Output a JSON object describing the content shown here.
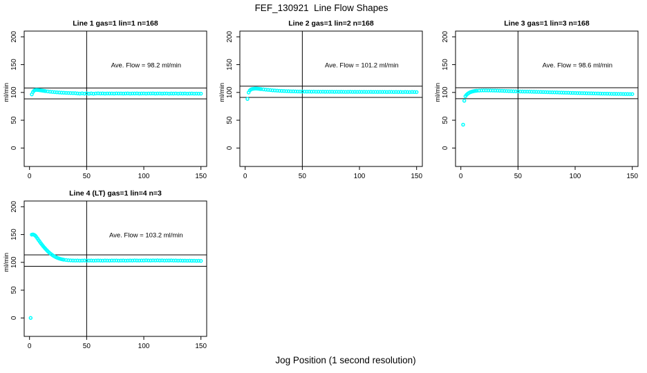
{
  "figure": {
    "title": "FEF_130921  Line Flow Shapes",
    "xlabel": "Jog Position (1 second resolution)",
    "point_color": "#00FFFF",
    "axis_color": "#000000",
    "background_color": "#FFFFFF"
  },
  "chart_data": [
    {
      "type": "scatter",
      "title": "Line 1 gas=1 lin=1 n=168",
      "annotation": "Ave. Flow =  98.2  ml/min",
      "ave_flow": 98.2,
      "n": 168,
      "ylabel": "ml/min",
      "xlim": [
        0,
        150
      ],
      "ylim": [
        0,
        200
      ],
      "x_ticks": [
        0,
        50,
        100,
        150
      ],
      "y_ticks": [
        0,
        50,
        100,
        150,
        200
      ],
      "vline_x": 50,
      "hlines": [
        108.0,
        88.4
      ],
      "points": [
        [
          2,
          96.5
        ],
        [
          3,
          100.8
        ],
        [
          4,
          103.2
        ],
        [
          5,
          104.3
        ],
        [
          6,
          104.6
        ],
        [
          7,
          104.5
        ],
        [
          8,
          104.2
        ],
        [
          9,
          103.9
        ],
        [
          10,
          103.6
        ],
        [
          11,
          103.3
        ],
        [
          12,
          103.0
        ],
        [
          13,
          102.7
        ],
        [
          14,
          102.4
        ],
        [
          16,
          101.8
        ],
        [
          18,
          101.3
        ],
        [
          20,
          100.9
        ],
        [
          22,
          100.5
        ],
        [
          24,
          100.2
        ],
        [
          26,
          99.9
        ],
        [
          28,
          99.6
        ],
        [
          30,
          99.4
        ],
        [
          32,
          99.2
        ],
        [
          34,
          99.0
        ],
        [
          36,
          98.9
        ],
        [
          38,
          98.7
        ],
        [
          40,
          98.6
        ],
        [
          42,
          98.2
        ],
        [
          44,
          97.9
        ],
        [
          46,
          98.4
        ],
        [
          48,
          97.8
        ],
        [
          50,
          98.3
        ],
        [
          52,
          97.7
        ],
        [
          54,
          98.2
        ],
        [
          56,
          97.6
        ],
        [
          58,
          98.1
        ],
        [
          60,
          98.3
        ],
        [
          62,
          98.0
        ],
        [
          64,
          98.2
        ],
        [
          66,
          97.9
        ],
        [
          68,
          98.1
        ],
        [
          70,
          98.0
        ],
        [
          72,
          98.1
        ],
        [
          74,
          97.9
        ],
        [
          76,
          98.2
        ],
        [
          78,
          98.0
        ],
        [
          80,
          98.1
        ],
        [
          82,
          97.9
        ],
        [
          84,
          98.0
        ],
        [
          86,
          98.2
        ],
        [
          88,
          97.9
        ],
        [
          90,
          98.1
        ],
        [
          92,
          98.0
        ],
        [
          94,
          98.2
        ],
        [
          96,
          97.9
        ],
        [
          98,
          98.0
        ],
        [
          100,
          98.1
        ],
        [
          102,
          97.9
        ],
        [
          104,
          98.1
        ],
        [
          106,
          98.0
        ],
        [
          108,
          98.2
        ],
        [
          110,
          97.9
        ],
        [
          112,
          98.0
        ],
        [
          114,
          98.1
        ],
        [
          116,
          97.9
        ],
        [
          118,
          98.0
        ],
        [
          120,
          98.1
        ],
        [
          122,
          97.8
        ],
        [
          124,
          98.0
        ],
        [
          126,
          97.9
        ],
        [
          128,
          98.1
        ],
        [
          130,
          97.8
        ],
        [
          132,
          98.0
        ],
        [
          134,
          97.9
        ],
        [
          136,
          98.0
        ],
        [
          138,
          97.8
        ],
        [
          140,
          97.9
        ],
        [
          142,
          98.0
        ],
        [
          144,
          97.8
        ],
        [
          146,
          97.9
        ],
        [
          148,
          97.8
        ],
        [
          150,
          97.8
        ]
      ]
    },
    {
      "type": "scatter",
      "title": "Line 2 gas=1 lin=2 n=168",
      "annotation": "Ave. Flow =  101.2  ml/min",
      "ave_flow": 101.2,
      "n": 168,
      "ylabel": "ml/min",
      "xlim": [
        0,
        150
      ],
      "ylim": [
        0,
        200
      ],
      "x_ticks": [
        0,
        50,
        100,
        150
      ],
      "y_ticks": [
        0,
        50,
        100,
        150,
        200
      ],
      "vline_x": 50,
      "hlines": [
        111.3,
        91.1
      ],
      "points": [
        [
          2,
          88.2
        ],
        [
          3,
          99.8
        ],
        [
          4,
          103.5
        ],
        [
          5,
          105.3
        ],
        [
          6,
          106.2
        ],
        [
          7,
          106.5
        ],
        [
          8,
          106.8
        ],
        [
          9,
          107.0
        ],
        [
          10,
          106.9
        ],
        [
          11,
          106.7
        ],
        [
          12,
          106.5
        ],
        [
          13,
          106.2
        ],
        [
          14,
          106.0
        ],
        [
          16,
          105.5
        ],
        [
          18,
          105.0
        ],
        [
          20,
          104.6
        ],
        [
          22,
          104.2
        ],
        [
          24,
          103.8
        ],
        [
          26,
          103.5
        ],
        [
          28,
          103.2
        ],
        [
          30,
          102.9
        ],
        [
          32,
          102.7
        ],
        [
          34,
          102.5
        ],
        [
          36,
          102.3
        ],
        [
          38,
          102.2
        ],
        [
          40,
          102.0
        ],
        [
          42,
          101.9
        ],
        [
          44,
          101.8
        ],
        [
          46,
          101.7
        ],
        [
          48,
          101.6
        ],
        [
          50,
          101.6
        ],
        [
          52,
          101.5
        ],
        [
          54,
          101.4
        ],
        [
          56,
          101.5
        ],
        [
          58,
          101.3
        ],
        [
          60,
          101.4
        ],
        [
          62,
          101.2
        ],
        [
          64,
          101.3
        ],
        [
          66,
          101.2
        ],
        [
          68,
          101.3
        ],
        [
          70,
          101.1
        ],
        [
          72,
          101.2
        ],
        [
          74,
          101.1
        ],
        [
          76,
          101.2
        ],
        [
          78,
          101.0
        ],
        [
          80,
          101.1
        ],
        [
          82,
          101.0
        ],
        [
          84,
          101.1
        ],
        [
          86,
          101.0
        ],
        [
          88,
          100.9
        ],
        [
          90,
          101.0
        ],
        [
          92,
          101.1
        ],
        [
          94,
          100.9
        ],
        [
          96,
          101.0
        ],
        [
          98,
          100.9
        ],
        [
          100,
          101.0
        ],
        [
          102,
          100.9
        ],
        [
          104,
          101.0
        ],
        [
          106,
          100.8
        ],
        [
          108,
          100.9
        ],
        [
          110,
          101.0
        ],
        [
          112,
          100.8
        ],
        [
          114,
          100.9
        ],
        [
          116,
          100.8
        ],
        [
          118,
          100.9
        ],
        [
          120,
          100.8
        ],
        [
          122,
          100.9
        ],
        [
          124,
          100.7
        ],
        [
          126,
          100.8
        ],
        [
          128,
          100.9
        ],
        [
          130,
          100.7
        ],
        [
          132,
          100.8
        ],
        [
          134,
          100.7
        ],
        [
          136,
          100.8
        ],
        [
          138,
          100.6
        ],
        [
          140,
          100.8
        ],
        [
          142,
          100.7
        ],
        [
          144,
          100.6
        ],
        [
          146,
          100.8
        ],
        [
          148,
          100.7
        ],
        [
          150,
          100.6
        ]
      ]
    },
    {
      "type": "scatter",
      "title": "Line 3 gas=1 lin=3 n=168",
      "annotation": "Ave. Flow =  98.6  ml/min",
      "ave_flow": 98.6,
      "n": 168,
      "ylabel": "ml/min",
      "xlim": [
        0,
        150
      ],
      "ylim": [
        0,
        200
      ],
      "x_ticks": [
        0,
        50,
        100,
        150
      ],
      "y_ticks": [
        0,
        50,
        100,
        150,
        200
      ],
      "vline_x": 50,
      "hlines": [
        108.5,
        88.7
      ],
      "points": [
        [
          2,
          42.0
        ],
        [
          3,
          85.0
        ],
        [
          4,
          93.2
        ],
        [
          5,
          95.8
        ],
        [
          6,
          97.6
        ],
        [
          7,
          99.0
        ],
        [
          8,
          100.2
        ],
        [
          9,
          101.0
        ],
        [
          10,
          101.6
        ],
        [
          11,
          102.1
        ],
        [
          12,
          102.5
        ],
        [
          13,
          102.8
        ],
        [
          14,
          103.0
        ],
        [
          16,
          103.3
        ],
        [
          18,
          103.5
        ],
        [
          20,
          103.6
        ],
        [
          22,
          103.6
        ],
        [
          24,
          103.5
        ],
        [
          26,
          103.5
        ],
        [
          28,
          103.4
        ],
        [
          30,
          103.3
        ],
        [
          32,
          103.2
        ],
        [
          34,
          103.0
        ],
        [
          36,
          102.9
        ],
        [
          38,
          102.7
        ],
        [
          40,
          102.6
        ],
        [
          42,
          102.4
        ],
        [
          44,
          102.3
        ],
        [
          46,
          102.1
        ],
        [
          48,
          102.0
        ],
        [
          50,
          101.9
        ],
        [
          52,
          101.7
        ],
        [
          54,
          101.6
        ],
        [
          56,
          101.5
        ],
        [
          58,
          101.5
        ],
        [
          60,
          101.4
        ],
        [
          62,
          101.2
        ],
        [
          64,
          101.1
        ],
        [
          66,
          101.0
        ],
        [
          68,
          100.9
        ],
        [
          70,
          100.8
        ],
        [
          72,
          100.7
        ],
        [
          74,
          100.6
        ],
        [
          76,
          100.4
        ],
        [
          78,
          100.3
        ],
        [
          80,
          100.2
        ],
        [
          82,
          100.1
        ],
        [
          84,
          100.0
        ],
        [
          86,
          99.8
        ],
        [
          88,
          99.7
        ],
        [
          90,
          99.6
        ],
        [
          92,
          99.5
        ],
        [
          94,
          99.4
        ],
        [
          96,
          99.2
        ],
        [
          98,
          99.1
        ],
        [
          100,
          99.0
        ],
        [
          102,
          98.9
        ],
        [
          104,
          98.8
        ],
        [
          106,
          98.7
        ],
        [
          108,
          98.6
        ],
        [
          110,
          98.5
        ],
        [
          112,
          98.4
        ],
        [
          114,
          98.3
        ],
        [
          116,
          98.2
        ],
        [
          118,
          98.1
        ],
        [
          120,
          98.0
        ],
        [
          122,
          97.9
        ],
        [
          124,
          97.8
        ],
        [
          126,
          97.8
        ],
        [
          128,
          97.7
        ],
        [
          130,
          97.6
        ],
        [
          132,
          97.5
        ],
        [
          134,
          97.4
        ],
        [
          136,
          97.4
        ],
        [
          138,
          97.3
        ],
        [
          140,
          97.3
        ],
        [
          142,
          97.2
        ],
        [
          144,
          97.1
        ],
        [
          146,
          97.1
        ],
        [
          148,
          97.0
        ],
        [
          150,
          97.0
        ]
      ]
    },
    {
      "type": "scatter",
      "title": "Line 4 (LT) gas=1 lin=4 n=3",
      "annotation": "Ave. Flow =  103.2  ml/min",
      "ave_flow": 103.2,
      "n": 3,
      "ylabel": "ml/min",
      "xlim": [
        0,
        150
      ],
      "ylim": [
        0,
        200
      ],
      "x_ticks": [
        0,
        50,
        100,
        150
      ],
      "y_ticks": [
        0,
        50,
        100,
        150,
        200
      ],
      "vline_x": 50,
      "hlines": [
        113.5,
        92.9
      ],
      "points": [
        [
          1,
          0.0
        ],
        [
          2,
          149.8
        ],
        [
          3,
          150.3
        ],
        [
          4,
          149.5
        ],
        [
          5,
          148.2
        ],
        [
          6,
          145.6
        ],
        [
          7,
          142.8
        ],
        [
          8,
          139.9
        ],
        [
          9,
          137.0
        ],
        [
          10,
          134.2
        ],
        [
          11,
          131.5
        ],
        [
          12,
          128.9
        ],
        [
          13,
          126.5
        ],
        [
          14,
          124.2
        ],
        [
          15,
          122.0
        ],
        [
          16,
          119.9
        ],
        [
          17,
          118.0
        ],
        [
          18,
          116.2
        ],
        [
          19,
          114.6
        ],
        [
          20,
          113.1
        ],
        [
          21,
          111.7
        ],
        [
          22,
          110.5
        ],
        [
          23,
          109.4
        ],
        [
          24,
          108.4
        ],
        [
          25,
          107.6
        ],
        [
          26,
          106.9
        ],
        [
          27,
          106.2
        ],
        [
          28,
          105.7
        ],
        [
          29,
          105.2
        ],
        [
          30,
          104.8
        ],
        [
          32,
          104.2
        ],
        [
          34,
          103.8
        ],
        [
          36,
          103.5
        ],
        [
          38,
          103.3
        ],
        [
          40,
          103.2
        ],
        [
          42,
          103.3
        ],
        [
          44,
          103.1
        ],
        [
          46,
          103.2
        ],
        [
          48,
          103.4
        ],
        [
          50,
          103.1
        ],
        [
          52,
          103.2
        ],
        [
          54,
          103.3
        ],
        [
          56,
          103.1
        ],
        [
          58,
          103.2
        ],
        [
          60,
          103.4
        ],
        [
          62,
          103.2
        ],
        [
          64,
          103.1
        ],
        [
          66,
          103.3
        ],
        [
          68,
          103.2
        ],
        [
          70,
          103.1
        ],
        [
          72,
          103.3
        ],
        [
          74,
          103.2
        ],
        [
          76,
          103.4
        ],
        [
          78,
          103.1
        ],
        [
          80,
          103.2
        ],
        [
          82,
          103.3
        ],
        [
          84,
          103.1
        ],
        [
          86,
          103.2
        ],
        [
          88,
          103.4
        ],
        [
          90,
          103.2
        ],
        [
          92,
          103.5
        ],
        [
          94,
          103.3
        ],
        [
          96,
          103.2
        ],
        [
          98,
          103.4
        ],
        [
          100,
          103.3
        ],
        [
          102,
          103.6
        ],
        [
          104,
          103.4
        ],
        [
          106,
          103.3
        ],
        [
          108,
          103.5
        ],
        [
          110,
          103.4
        ],
        [
          112,
          103.6
        ],
        [
          114,
          103.3
        ],
        [
          116,
          103.5
        ],
        [
          118,
          103.2
        ],
        [
          120,
          103.4
        ],
        [
          122,
          103.3
        ],
        [
          124,
          103.5
        ],
        [
          126,
          103.2
        ],
        [
          128,
          103.3
        ],
        [
          130,
          103.1
        ],
        [
          132,
          103.2
        ],
        [
          134,
          103.0
        ],
        [
          136,
          103.1
        ],
        [
          138,
          102.9
        ],
        [
          140,
          103.0
        ],
        [
          142,
          102.8
        ],
        [
          144,
          102.9
        ],
        [
          146,
          102.7
        ],
        [
          148,
          102.8
        ],
        [
          150,
          102.6
        ]
      ]
    }
  ]
}
